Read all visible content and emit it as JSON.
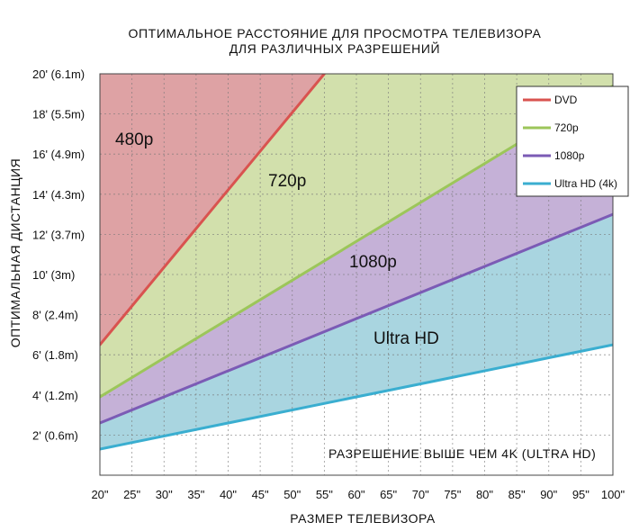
{
  "chart_data": {
    "type": "area",
    "title": "ОПТИМАЛЬНОЕ РАССТОЯНИЕ ДЛЯ ПРОСМОТРА ТЕЛЕВИЗОРА",
    "subtitle": "ДЛЯ РАЗЛИЧНЫХ РАЗРЕШЕНИЙ",
    "xlabel": "РАЗМЕР ТЕЛЕВИЗОРА",
    "ylabel": "ОПТИМАЛЬНАЯ ДИСТАНЦИЯ",
    "x_ticks": [
      "20\"",
      "25\"",
      "30\"",
      "35\"",
      "40\"",
      "45\"",
      "50\"",
      "55\"",
      "60\"",
      "65\"",
      "70\"",
      "75\"",
      "80\"",
      "85\"",
      "90\"",
      "95\"",
      "100\""
    ],
    "y_ticks": [
      "2' (0.6m)",
      "4' (1.2m)",
      "6' (1.8m)",
      "8' (2.4m)",
      "10' (3m)",
      "12' (3.7m)",
      "14' (4.3m)",
      "16' (4.9m)",
      "18' (5.5m)",
      "20' (6.1m)"
    ],
    "xlim": [
      20,
      100
    ],
    "ylim": [
      0,
      20
    ],
    "grid": true,
    "legend_position": "top-right",
    "series": [
      {
        "name": "DVD",
        "color": "#d9534f",
        "x": [
          20,
          55
        ],
        "y": [
          6.5,
          20
        ]
      },
      {
        "name": "720p",
        "color": "#9cc65a",
        "x": [
          20,
          100
        ],
        "y": [
          3.9,
          19.4
        ]
      },
      {
        "name": "1080p",
        "color": "#7b5bb5",
        "x": [
          20,
          100
        ],
        "y": [
          2.6,
          13
        ]
      },
      {
        "name": "Ultra HD (4k)",
        "color": "#3aaed0",
        "x": [
          20,
          100
        ],
        "y": [
          1.3,
          6.5
        ]
      }
    ],
    "region_colors": {
      "480p": "#dea2a4",
      "720p": "#d2e0ac",
      "1080p": "#c5b1d7",
      "ultra_hd": "#a9d5e0"
    },
    "region_labels": {
      "480p": "480p",
      "720p": "720p",
      "1080p": "1080p",
      "ultra_hd": "Ultra HD"
    },
    "annotation": "РАЗРЕШЕНИЕ ВЫШЕ ЧЕМ 4K (ULTRA HD)"
  }
}
